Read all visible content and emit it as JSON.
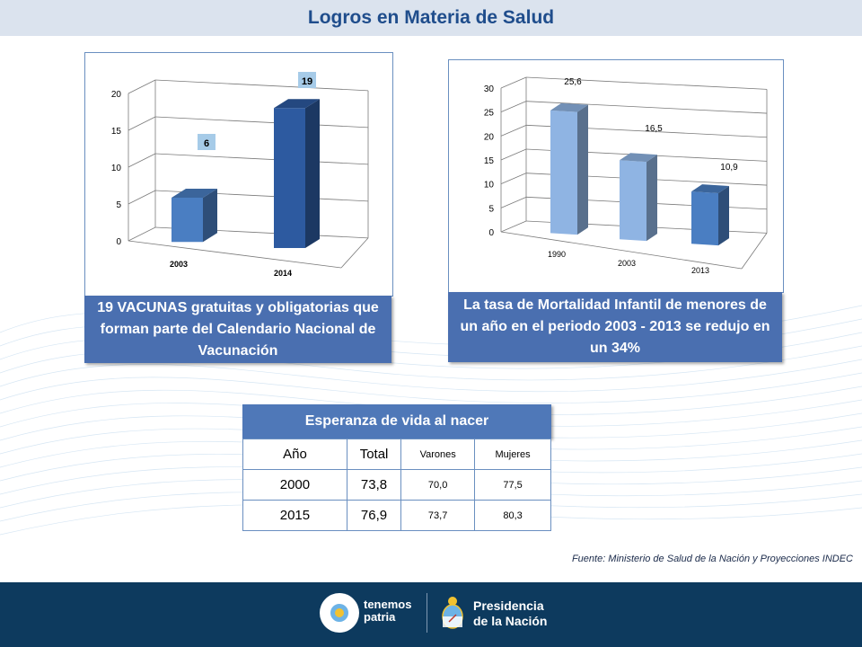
{
  "header": {
    "title": "Logros en Materia de Salud"
  },
  "chart_data": [
    {
      "type": "bar",
      "categories": [
        "2003",
        "2014"
      ],
      "values": [
        6,
        19
      ],
      "data_labels": [
        "6",
        "19"
      ],
      "yticks": [
        "0",
        "5",
        "10",
        "15",
        "20"
      ],
      "ylim": [
        0,
        20
      ],
      "grid": true,
      "colors": [
        "#4a7ec2",
        "#2d5aa0"
      ]
    },
    {
      "type": "bar",
      "categories": [
        "1990",
        "2003",
        "2013"
      ],
      "values": [
        25.6,
        16.5,
        10.9
      ],
      "data_labels": [
        "25,6",
        "16,5",
        "10,9"
      ],
      "yticks": [
        "0",
        "5",
        "10",
        "15",
        "20",
        "25",
        "30"
      ],
      "ylim": [
        0,
        30
      ],
      "grid": true,
      "colors": [
        "#8fb4e3",
        "#8fb4e3",
        "#4a7ec2"
      ]
    }
  ],
  "captions": {
    "vacunas": "19 VACUNAS gratuitas y obligatorias que forman parte del  Calendario Nacional de Vacunación",
    "mortalidad": "La tasa de Mortalidad Infantil de menores de un año en el periodo 2003 - 2013 se redujo en un 34%"
  },
  "table": {
    "title": "Esperanza de vida al nacer",
    "headers": [
      "Año",
      "Total",
      "Varones",
      "Mujeres"
    ],
    "rows": [
      [
        "2000",
        "73,8",
        "70,0",
        "77,5"
      ],
      [
        "2015",
        "76,9",
        "73,7",
        "80,3"
      ]
    ]
  },
  "source": "Fuente: Ministerio de Salud de la Nación y Proyecciones INDEC",
  "footer": {
    "logo1_line1": "tenemos",
    "logo1_line2": "patria",
    "logo2_line1": "Presidencia",
    "logo2_line2": "de la Nación"
  }
}
